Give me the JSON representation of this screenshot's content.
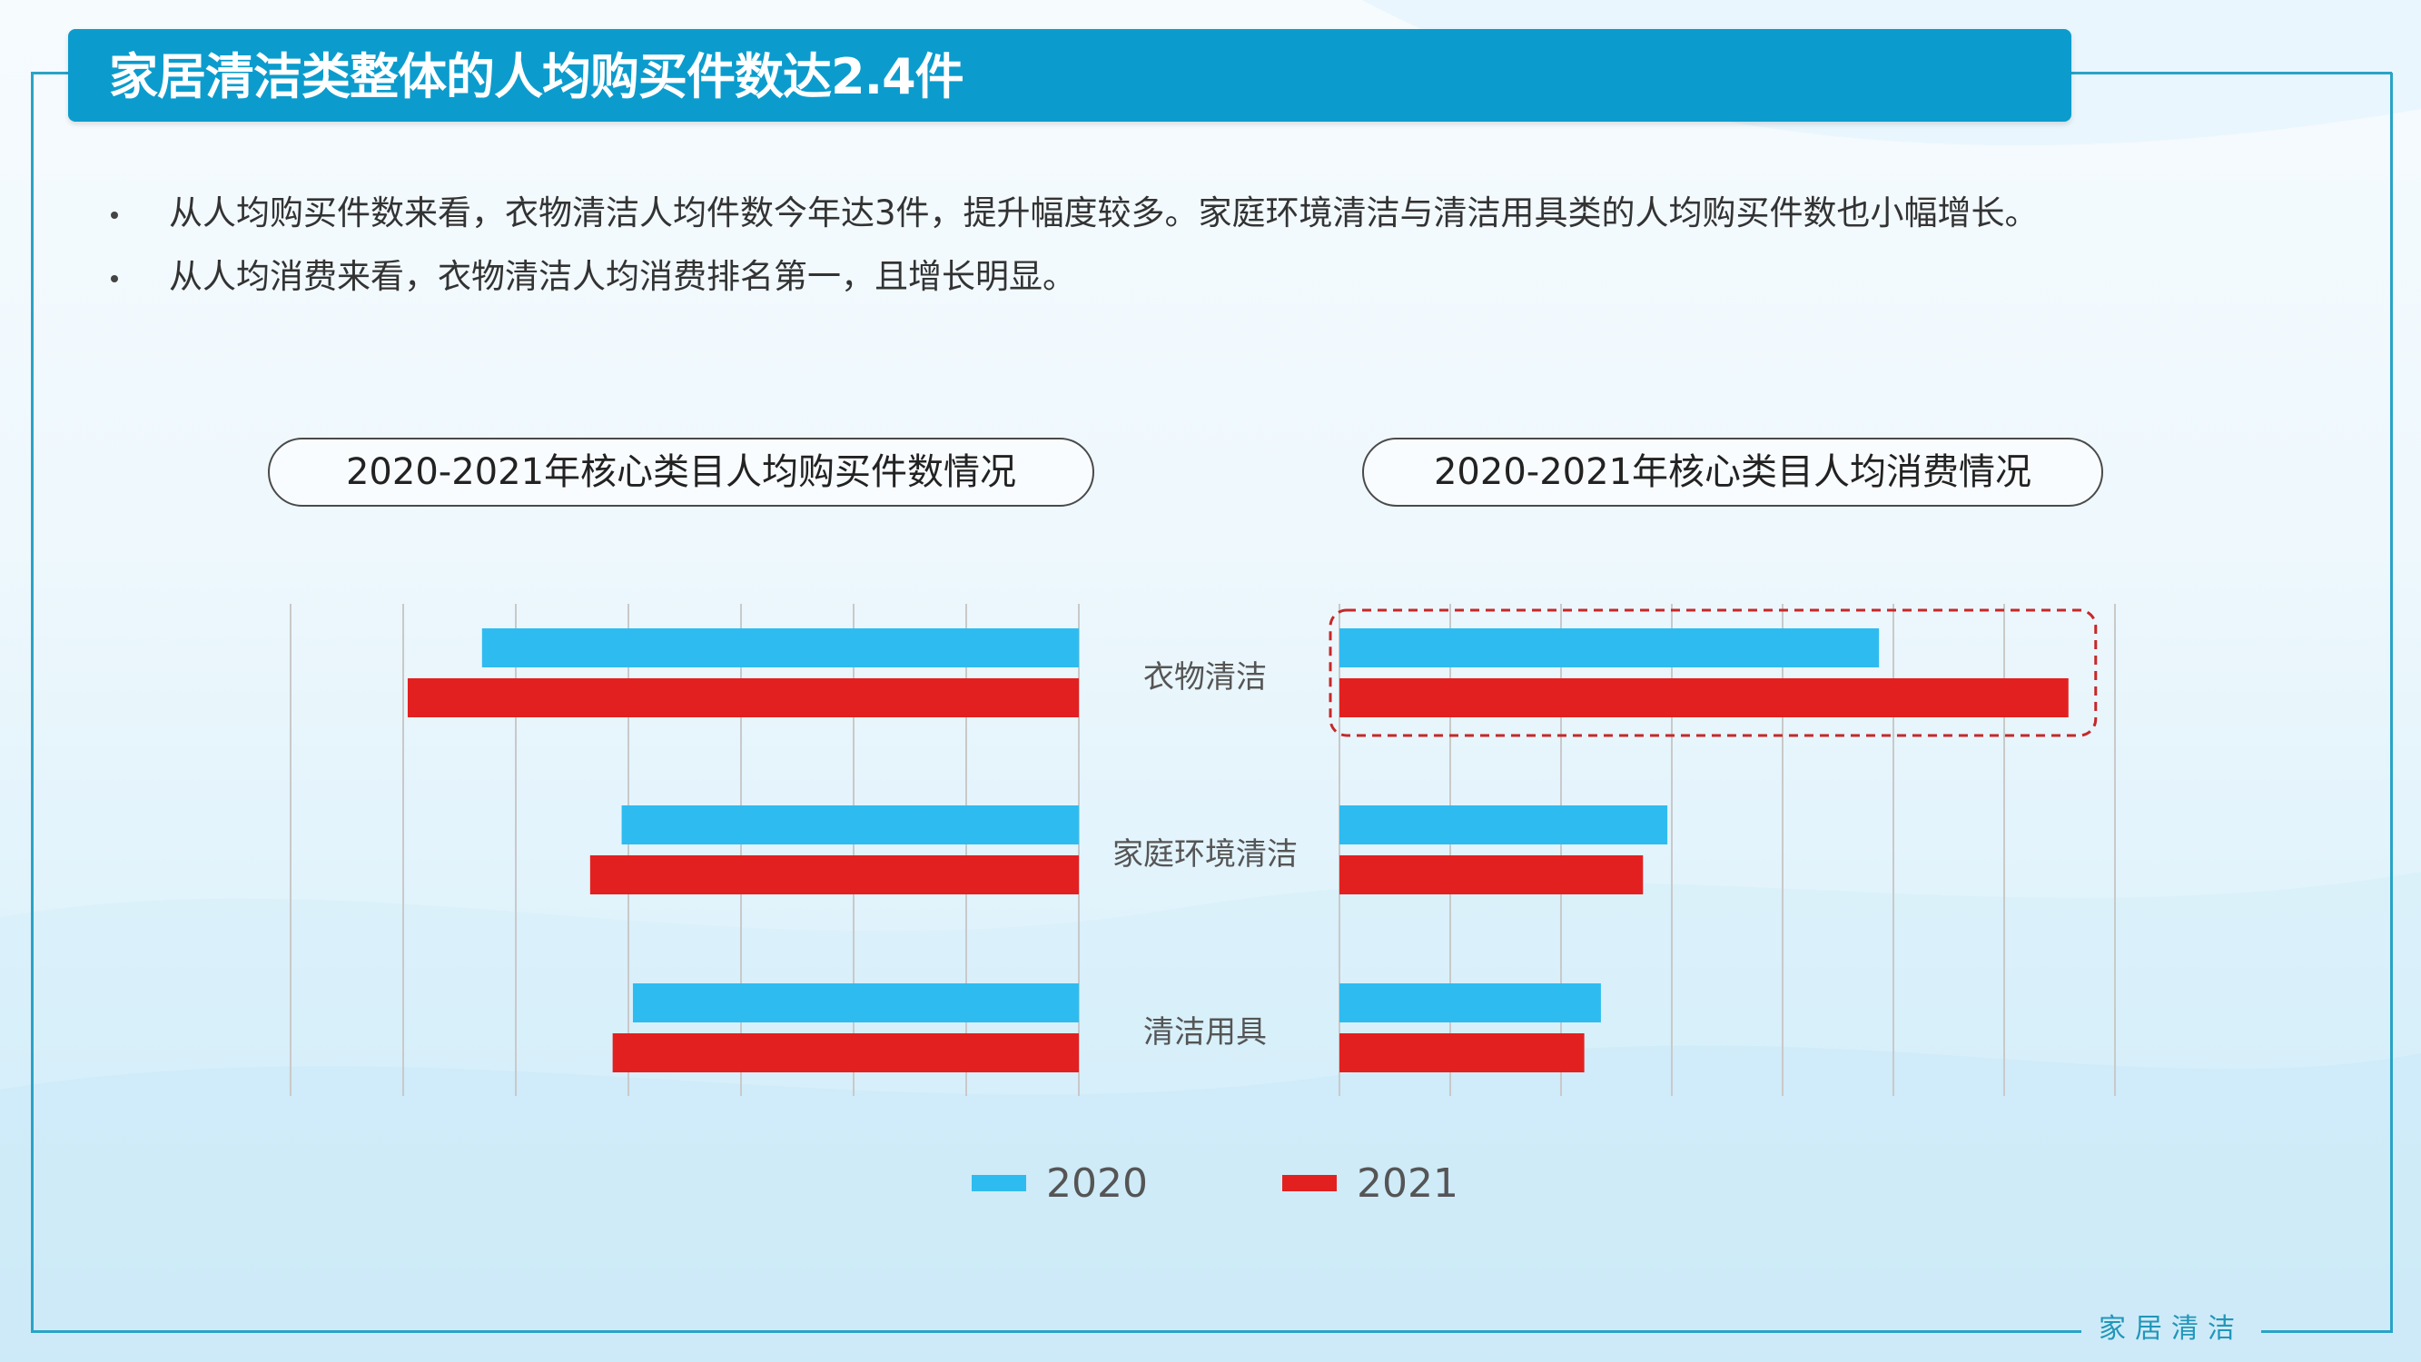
{
  "header": {
    "title": "家居清洁类整体的人均购买件数达2.4件"
  },
  "bullets": [
    "从人均购买件数来看，衣物清洁人均件数今年达3件，提升幅度较多。家庭环境清洁与清洁用具类的人均购买件数也小幅增长。",
    "从人均消费来看，衣物清洁人均消费排名第一，且增长明显。"
  ],
  "footer": {
    "label": "家居清洁"
  },
  "colors": {
    "frame": "#2aa3c6",
    "title_bar": "#0b9ccd",
    "series_2020": "#2ebcf0",
    "series_2021": "#e32020",
    "highlight": "#c62828"
  },
  "chart_data": [
    {
      "type": "bar",
      "orientation": "horizontal",
      "direction": "right-to-left",
      "title": "2020-2021年核心类目人均购买件数情况",
      "categories": [
        "衣物清洁",
        "家庭环境清洁",
        "清洁用具"
      ],
      "series": [
        {
          "name": "2020",
          "values": [
            2.65,
            2.03,
            1.98
          ]
        },
        {
          "name": "2021",
          "values": [
            2.98,
            2.17,
            2.07
          ]
        }
      ],
      "xlim": [
        0,
        3.5
      ],
      "grid": true,
      "tick_labels_shown": false
    },
    {
      "type": "bar",
      "orientation": "horizontal",
      "direction": "left-to-right",
      "title": "2020-2021年核心类目人均消费情况",
      "categories": [
        "衣物清洁",
        "家庭环境清洁",
        "清洁用具"
      ],
      "series": [
        {
          "name": "2020",
          "values": [
            4.87,
            2.96,
            2.36
          ]
        },
        {
          "name": "2021",
          "values": [
            6.58,
            2.74,
            2.21
          ]
        }
      ],
      "xlim": [
        0,
        7
      ],
      "grid": true,
      "tick_labels_shown": false,
      "highlight_category": "衣物清洁"
    }
  ],
  "legend": {
    "position": "bottom",
    "items": [
      "2020",
      "2021"
    ]
  }
}
